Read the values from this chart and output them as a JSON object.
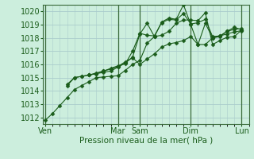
{
  "xlabel": "Pression niveau de la mer( hPa )",
  "ylim": [
    1011.5,
    1020.5
  ],
  "yticks": [
    1012,
    1013,
    1014,
    1015,
    1016,
    1017,
    1018,
    1019,
    1020
  ],
  "bg_color": "#cceedd",
  "grid_color": "#aacccc",
  "line_color": "#1a5c1a",
  "x_day_labels": [
    "Ven",
    "Mar",
    "Sam",
    "Dim",
    "Lun"
  ],
  "x_day_positions": [
    0,
    10,
    13,
    20,
    27
  ],
  "vline_positions": [
    0,
    10,
    13,
    20,
    27
  ],
  "xlim": [
    -0.3,
    28
  ],
  "lines": [
    {
      "x": [
        0,
        1,
        2,
        3,
        4,
        5,
        6,
        7,
        8,
        9,
        10,
        11,
        12,
        13,
        14,
        15,
        16,
        17,
        18,
        19,
        20,
        21,
        22,
        23,
        24,
        25,
        26,
        27
      ],
      "y": [
        1011.8,
        1012.3,
        1012.9,
        1013.5,
        1014.1,
        1014.4,
        1014.7,
        1015.0,
        1015.05,
        1015.1,
        1015.15,
        1015.55,
        1016.0,
        1016.3,
        1017.6,
        1018.1,
        1018.2,
        1018.5,
        1019.1,
        1019.35,
        1019.35,
        1019.3,
        1019.9,
        1017.5,
        1017.8,
        1018.05,
        1018.1,
        1018.6
      ]
    },
    {
      "x": [
        3,
        4,
        5,
        6,
        7,
        8,
        9,
        10,
        11,
        12,
        13,
        14,
        15,
        16,
        17,
        18,
        19,
        20,
        21,
        22,
        23,
        24,
        25,
        26,
        27
      ],
      "y": [
        1014.4,
        1015.0,
        1015.1,
        1015.2,
        1015.3,
        1015.4,
        1015.5,
        1015.8,
        1016.1,
        1016.55,
        1018.3,
        1019.1,
        1018.1,
        1019.2,
        1019.5,
        1019.4,
        1020.5,
        1019.0,
        1017.5,
        1019.1,
        1018.0,
        1018.1,
        1018.5,
        1018.8,
        1018.6
      ]
    },
    {
      "x": [
        3,
        4,
        5,
        6,
        7,
        8,
        9,
        10,
        11,
        12,
        13,
        14,
        15,
        16,
        17,
        18,
        19,
        20,
        21,
        22,
        23,
        24,
        25,
        26,
        27
      ],
      "y": [
        1014.5,
        1015.0,
        1015.1,
        1015.2,
        1015.3,
        1015.5,
        1015.7,
        1015.9,
        1016.05,
        1017.0,
        1018.35,
        1018.2,
        1018.15,
        1019.15,
        1019.4,
        1019.35,
        1019.85,
        1019.05,
        1019.15,
        1019.4,
        1018.1,
        1018.15,
        1018.5,
        1018.65,
        1018.7
      ]
    },
    {
      "x": [
        6,
        7,
        8,
        9,
        10,
        11,
        12,
        13,
        14,
        15,
        16,
        17,
        18,
        19,
        20,
        21,
        22,
        23,
        24,
        25,
        26,
        27
      ],
      "y": [
        1015.2,
        1015.35,
        1015.5,
        1015.65,
        1015.85,
        1016.2,
        1016.5,
        1016.0,
        1016.4,
        1016.8,
        1017.3,
        1017.55,
        1017.65,
        1017.8,
        1018.1,
        1017.5,
        1017.5,
        1018.0,
        1018.15,
        1018.3,
        1018.45,
        1018.55
      ]
    }
  ]
}
